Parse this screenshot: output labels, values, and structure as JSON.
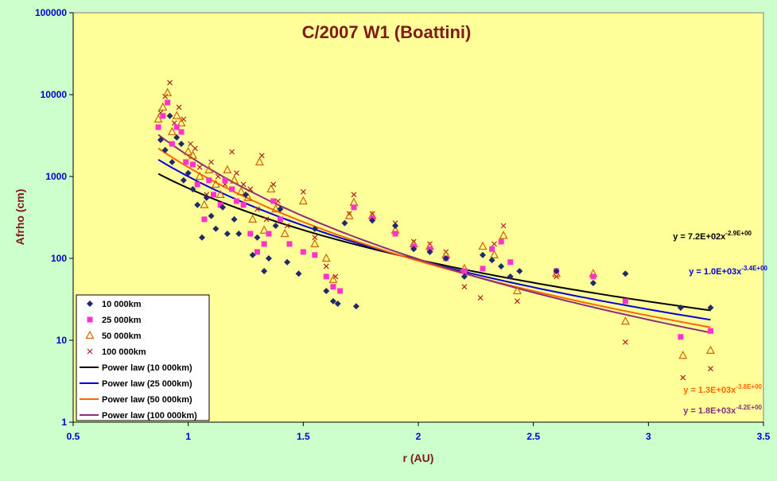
{
  "chart_data": {
    "type": "scatter",
    "title": "C/2007 W1 (Boattini)",
    "xlabel": "r (AU)",
    "ylabel": "Afrho (cm)",
    "xlim": [
      0.5,
      3.5
    ],
    "ylim": [
      1,
      100000
    ],
    "yscale": "log",
    "x_ticks": [
      "0.5",
      "1",
      "1.5",
      "2",
      "2.5",
      "3",
      "3.5"
    ],
    "y_ticks": [
      "1",
      "10",
      "100",
      "1000",
      "10000",
      "100000"
    ],
    "grid": false,
    "legend_position": "bottom-left",
    "series": [
      {
        "name": "10 000km",
        "marker": "diamond",
        "color": "#1f2a6b",
        "points": [
          [
            0.88,
            2800
          ],
          [
            0.9,
            2100
          ],
          [
            0.92,
            5500
          ],
          [
            0.93,
            1500
          ],
          [
            0.95,
            3000
          ],
          [
            0.97,
            2500
          ],
          [
            0.98,
            900
          ],
          [
            1.0,
            1100
          ],
          [
            1.02,
            700
          ],
          [
            1.04,
            450
          ],
          [
            1.06,
            180
          ],
          [
            1.08,
            550
          ],
          [
            1.1,
            330
          ],
          [
            1.12,
            230
          ],
          [
            1.15,
            420
          ],
          [
            1.17,
            200
          ],
          [
            1.2,
            300
          ],
          [
            1.22,
            200
          ],
          [
            1.25,
            600
          ],
          [
            1.28,
            110
          ],
          [
            1.3,
            180
          ],
          [
            1.33,
            70
          ],
          [
            1.35,
            100
          ],
          [
            1.38,
            250
          ],
          [
            1.4,
            400
          ],
          [
            1.43,
            90
          ],
          [
            1.48,
            65
          ],
          [
            1.55,
            230
          ],
          [
            1.6,
            40
          ],
          [
            1.63,
            30
          ],
          [
            1.65,
            28
          ],
          [
            1.68,
            270
          ],
          [
            1.73,
            26
          ],
          [
            1.8,
            290
          ],
          [
            1.9,
            250
          ],
          [
            1.98,
            130
          ],
          [
            2.05,
            120
          ],
          [
            2.12,
            100
          ],
          [
            2.2,
            60
          ],
          [
            2.28,
            110
          ],
          [
            2.32,
            95
          ],
          [
            2.36,
            80
          ],
          [
            2.4,
            60
          ],
          [
            2.44,
            70
          ],
          [
            2.6,
            70
          ],
          [
            2.76,
            50
          ],
          [
            2.9,
            65
          ],
          [
            3.14,
            25
          ],
          [
            3.27,
            25
          ]
        ]
      },
      {
        "name": "25 000km",
        "marker": "square",
        "color": "#ff33cc",
        "points": [
          [
            0.87,
            4000
          ],
          [
            0.89,
            5500
          ],
          [
            0.91,
            8000
          ],
          [
            0.93,
            2500
          ],
          [
            0.95,
            4000
          ],
          [
            0.97,
            3500
          ],
          [
            0.99,
            1500
          ],
          [
            1.02,
            1400
          ],
          [
            1.04,
            800
          ],
          [
            1.07,
            300
          ],
          [
            1.09,
            900
          ],
          [
            1.11,
            600
          ],
          [
            1.14,
            450
          ],
          [
            1.16,
            900
          ],
          [
            1.19,
            700
          ],
          [
            1.21,
            500
          ],
          [
            1.24,
            450
          ],
          [
            1.27,
            200
          ],
          [
            1.3,
            120
          ],
          [
            1.33,
            150
          ],
          [
            1.35,
            200
          ],
          [
            1.37,
            500
          ],
          [
            1.4,
            300
          ],
          [
            1.44,
            150
          ],
          [
            1.5,
            120
          ],
          [
            1.55,
            110
          ],
          [
            1.6,
            60
          ],
          [
            1.63,
            45
          ],
          [
            1.66,
            40
          ],
          [
            1.72,
            420
          ],
          [
            1.8,
            310
          ],
          [
            1.9,
            200
          ],
          [
            1.98,
            140
          ],
          [
            2.05,
            130
          ],
          [
            2.12,
            100
          ],
          [
            2.2,
            70
          ],
          [
            2.28,
            75
          ],
          [
            2.32,
            130
          ],
          [
            2.36,
            160
          ],
          [
            2.4,
            90
          ],
          [
            2.6,
            70
          ],
          [
            2.76,
            60
          ],
          [
            2.9,
            30
          ],
          [
            3.14,
            11
          ],
          [
            3.27,
            13
          ]
        ]
      },
      {
        "name": "50 000km",
        "marker": "triangle",
        "color": "#cc6600",
        "points": [
          [
            0.87,
            5000
          ],
          [
            0.89,
            7000
          ],
          [
            0.91,
            10500
          ],
          [
            0.93,
            3500
          ],
          [
            0.95,
            5500
          ],
          [
            0.97,
            4500
          ],
          [
            1.0,
            2000
          ],
          [
            1.02,
            1800
          ],
          [
            1.05,
            1000
          ],
          [
            1.07,
            450
          ],
          [
            1.09,
            1200
          ],
          [
            1.12,
            800
          ],
          [
            1.14,
            600
          ],
          [
            1.17,
            1200
          ],
          [
            1.2,
            900
          ],
          [
            1.23,
            650
          ],
          [
            1.26,
            550
          ],
          [
            1.28,
            300
          ],
          [
            1.31,
            1500
          ],
          [
            1.33,
            220
          ],
          [
            1.36,
            700
          ],
          [
            1.38,
            400
          ],
          [
            1.42,
            200
          ],
          [
            1.5,
            500
          ],
          [
            1.55,
            150
          ],
          [
            1.6,
            100
          ],
          [
            1.63,
            55
          ],
          [
            1.7,
            330
          ],
          [
            1.72,
            480
          ],
          [
            1.8,
            330
          ],
          [
            1.9,
            220
          ],
          [
            1.98,
            150
          ],
          [
            2.05,
            140
          ],
          [
            2.12,
            110
          ],
          [
            2.2,
            75
          ],
          [
            2.28,
            140
          ],
          [
            2.33,
            110
          ],
          [
            2.37,
            190
          ],
          [
            2.43,
            40
          ],
          [
            2.6,
            65
          ],
          [
            2.76,
            65
          ],
          [
            2.9,
            17
          ],
          [
            3.15,
            6.5
          ],
          [
            3.27,
            7.5
          ]
        ]
      },
      {
        "name": "100 000km",
        "marker": "x",
        "color": "#aa2222",
        "points": [
          [
            0.88,
            6000
          ],
          [
            0.9,
            9500
          ],
          [
            0.92,
            14000
          ],
          [
            0.94,
            4500
          ],
          [
            0.96,
            7000
          ],
          [
            0.98,
            5000
          ],
          [
            1.01,
            2500
          ],
          [
            1.03,
            2200
          ],
          [
            1.05,
            1300
          ],
          [
            1.08,
            600
          ],
          [
            1.1,
            1500
          ],
          [
            1.13,
            1000
          ],
          [
            1.16,
            800
          ],
          [
            1.19,
            2000
          ],
          [
            1.21,
            1100
          ],
          [
            1.24,
            800
          ],
          [
            1.27,
            700
          ],
          [
            1.3,
            400
          ],
          [
            1.32,
            1800
          ],
          [
            1.34,
            300
          ],
          [
            1.37,
            800
          ],
          [
            1.39,
            500
          ],
          [
            1.43,
            250
          ],
          [
            1.5,
            650
          ],
          [
            1.55,
            180
          ],
          [
            1.6,
            80
          ],
          [
            1.64,
            60
          ],
          [
            1.7,
            350
          ],
          [
            1.72,
            600
          ],
          [
            1.8,
            350
          ],
          [
            1.9,
            270
          ],
          [
            1.98,
            160
          ],
          [
            2.05,
            150
          ],
          [
            2.12,
            120
          ],
          [
            2.2,
            45
          ],
          [
            2.27,
            33
          ],
          [
            2.33,
            150
          ],
          [
            2.37,
            250
          ],
          [
            2.43,
            30
          ],
          [
            2.6,
            60
          ],
          [
            2.76,
            60
          ],
          [
            2.9,
            9.5
          ],
          [
            3.15,
            3.5
          ],
          [
            3.27,
            4.5
          ]
        ]
      }
    ],
    "fits": [
      {
        "name": "Power law (10 000km)",
        "color": "#000000",
        "a": 720,
        "b": -2.9,
        "label": "y = 7.2E+02x",
        "exponent": "-2.9E+00"
      },
      {
        "name": "Power law (25 000km)",
        "color": "#0000dd",
        "a": 1000,
        "b": -3.4,
        "label": "y = 1.0E+03x",
        "exponent": "-3.4E+00"
      },
      {
        "name": "Power law (50 000km)",
        "color": "#ff6600",
        "a": 1300,
        "b": -3.8,
        "label": "y = 1.3E+03x",
        "exponent": "-3.8E+00"
      },
      {
        "name": "Power law (100 000km)",
        "color": "#8b2f7a",
        "a": 1800,
        "b": -4.2,
        "label": "y = 1.8E+03x",
        "exponent": "-4.2E+00"
      }
    ],
    "fit_range": [
      0.87,
      3.27
    ]
  }
}
